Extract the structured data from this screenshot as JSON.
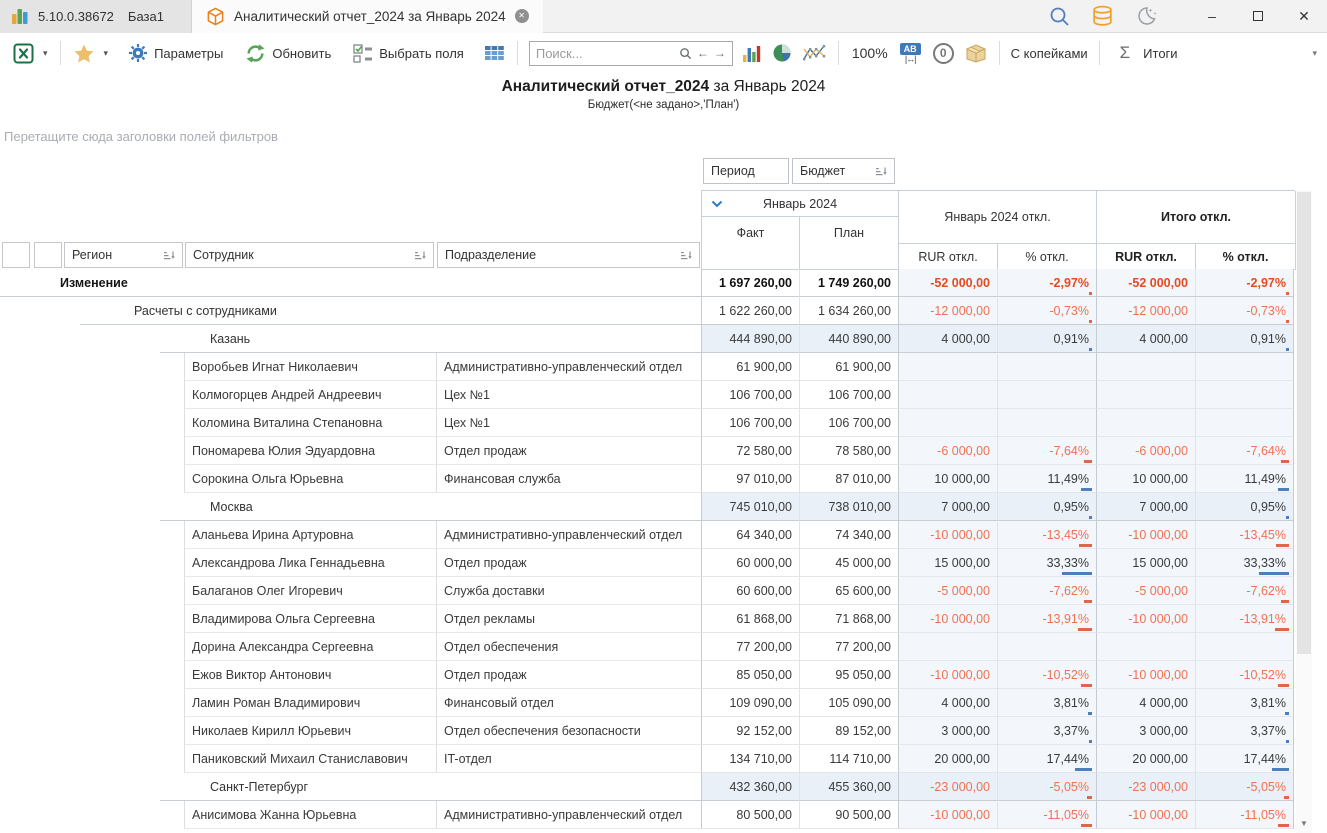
{
  "window": {
    "app_version": "5.10.0.38672",
    "database": "База1",
    "tab_title": "Аналитический отчет_2024 за Январь 2024"
  },
  "toolbar": {
    "params_label": "Параметры",
    "refresh_label": "Обновить",
    "select_fields_label": "Выбрать поля",
    "search_placeholder": "Поиск...",
    "zoom_level": "100%",
    "kopecks_label": "С копейками",
    "totals_label": "Итоги"
  },
  "report": {
    "title_bold": "Аналитический отчет_2024",
    "title_rest": " за Январь 2024",
    "subtitle": "Бюджет(<не задано>,'План')",
    "filter_hint": "Перетащите сюда заголовки полей фильтров"
  },
  "pivot": {
    "header": {
      "period_field": "Период",
      "budget_field": "Бюджет",
      "jan": "Январь 2024",
      "fact": "Факт",
      "plan": "План",
      "jan_dev": "Январь 2024 откл.",
      "rur_dev": "RUR откл.",
      "pct_dev": "% откл.",
      "total_dev": "Итого откл.",
      "rur_dev_total": "RUR откл.",
      "pct_dev_total": "% откл.",
      "region": "Регион",
      "employee": "Сотрудник",
      "department": "Подразделение"
    },
    "rows": [
      {
        "type": "group1",
        "label": "Изменение",
        "values": [
          "1 697 260,00",
          "1 749 260,00",
          "-52 000,00",
          "-2,97%",
          "-52 000,00",
          "-2,97%"
        ]
      },
      {
        "type": "group2",
        "label": "Расчеты с сотрудниками",
        "values": [
          "1 622 260,00",
          "1 634 260,00",
          "-12 000,00",
          "-0,73%",
          "-12 000,00",
          "-0,73%"
        ]
      },
      {
        "type": "group3",
        "label": "Казань",
        "values": [
          "444 890,00",
          "440 890,00",
          "4 000,00",
          "0,91%",
          "4 000,00",
          "0,91%"
        ]
      },
      {
        "type": "emp",
        "name": "Воробьев Игнат Николаевич",
        "dept": "Административно-управленческий отдел",
        "values": [
          "61 900,00",
          "61 900,00",
          "",
          "",
          "",
          ""
        ]
      },
      {
        "type": "emp",
        "name": "Колмогорцев Андрей Андреевич",
        "dept": "Цех №1",
        "values": [
          "106 700,00",
          "106 700,00",
          "",
          "",
          "",
          ""
        ]
      },
      {
        "type": "emp",
        "name": "Коломина Виталина Степановна",
        "dept": "Цех №1",
        "values": [
          "106 700,00",
          "106 700,00",
          "",
          "",
          "",
          ""
        ]
      },
      {
        "type": "emp",
        "name": "Пономарева Юлия Эдуардовна",
        "dept": "Отдел продаж",
        "values": [
          "72 580,00",
          "78 580,00",
          "-6 000,00",
          "-7,64%",
          "-6 000,00",
          "-7,64%"
        ]
      },
      {
        "type": "emp",
        "name": "Сорокина Ольга Юрьевна",
        "dept": "Финансовая служба",
        "values": [
          "97 010,00",
          "87 010,00",
          "10 000,00",
          "11,49%",
          "10 000,00",
          "11,49%"
        ]
      },
      {
        "type": "group3",
        "label": "Москва",
        "values": [
          "745 010,00",
          "738 010,00",
          "7 000,00",
          "0,95%",
          "7 000,00",
          "0,95%"
        ]
      },
      {
        "type": "emp",
        "name": "Аланьева Ирина Артуровна",
        "dept": "Административно-управленческий отдел",
        "values": [
          "64 340,00",
          "74 340,00",
          "-10 000,00",
          "-13,45%",
          "-10 000,00",
          "-13,45%"
        ]
      },
      {
        "type": "emp",
        "name": "Александрова Лика Геннадьевна",
        "dept": "Отдел продаж",
        "values": [
          "60 000,00",
          "45 000,00",
          "15 000,00",
          "33,33%",
          "15 000,00",
          "33,33%"
        ]
      },
      {
        "type": "emp",
        "name": "Балаганов Олег Игоревич",
        "dept": "Служба доставки",
        "values": [
          "60 600,00",
          "65 600,00",
          "-5 000,00",
          "-7,62%",
          "-5 000,00",
          "-7,62%"
        ]
      },
      {
        "type": "emp",
        "name": "Владимирова Ольга Сергеевна",
        "dept": "Отдел рекламы",
        "values": [
          "61 868,00",
          "71 868,00",
          "-10 000,00",
          "-13,91%",
          "-10 000,00",
          "-13,91%"
        ]
      },
      {
        "type": "emp",
        "name": "Дорина Александра Сергеевна",
        "dept": "Отдел обеспечения",
        "values": [
          "77 200,00",
          "77 200,00",
          "",
          "",
          "",
          ""
        ]
      },
      {
        "type": "emp",
        "name": "Ежов Виктор Антонович",
        "dept": "Отдел продаж",
        "values": [
          "85 050,00",
          "95 050,00",
          "-10 000,00",
          "-10,52%",
          "-10 000,00",
          "-10,52%"
        ]
      },
      {
        "type": "emp",
        "name": "Ламин Роман Владимирович",
        "dept": "Финансовый отдел",
        "values": [
          "109 090,00",
          "105 090,00",
          "4 000,00",
          "3,81%",
          "4 000,00",
          "3,81%"
        ]
      },
      {
        "type": "emp",
        "name": "Николаев Кирилл Юрьевич",
        "dept": "Отдел обеспечения безопасности",
        "values": [
          "92 152,00",
          "89 152,00",
          "3 000,00",
          "3,37%",
          "3 000,00",
          "3,37%"
        ]
      },
      {
        "type": "emp",
        "name": "Паниковский Михаил Станиславович",
        "dept": "IT-отдел",
        "values": [
          "134 710,00",
          "114 710,00",
          "20 000,00",
          "17,44%",
          "20 000,00",
          "17,44%"
        ]
      },
      {
        "type": "group3",
        "label": "Санкт-Петербург",
        "values": [
          "432 360,00",
          "455 360,00",
          "-23 000,00",
          "-5,05%",
          "-23 000,00",
          "-5,05%"
        ]
      },
      {
        "type": "emp",
        "name": "Анисимова Жанна Юрьевна",
        "dept": "Административно-управленческий отдел",
        "values": [
          "80 500,00",
          "90 500,00",
          "-10 000,00",
          "-11,05%",
          "-10 000,00",
          "-11,05%"
        ]
      }
    ]
  },
  "glyphs": {
    "dropdown": "▾",
    "back": "←",
    "forward": "→",
    "sigma": "Σ",
    "minimize": "–",
    "close": "✕",
    "tab_close": "✕",
    "scroll_down": "▼",
    "zero": "0",
    "ab": "AB",
    "width_arrows": "↔"
  },
  "colors": {
    "accent_blue": "#3e79b8",
    "negative_text": "#ef7150",
    "negative_strong": "#e8491f",
    "positive_bar": "#4d7fbe",
    "negative_bar": "#e2654a",
    "excel_green": "#1e7145",
    "tab_icon_orange": "#e8821e"
  }
}
